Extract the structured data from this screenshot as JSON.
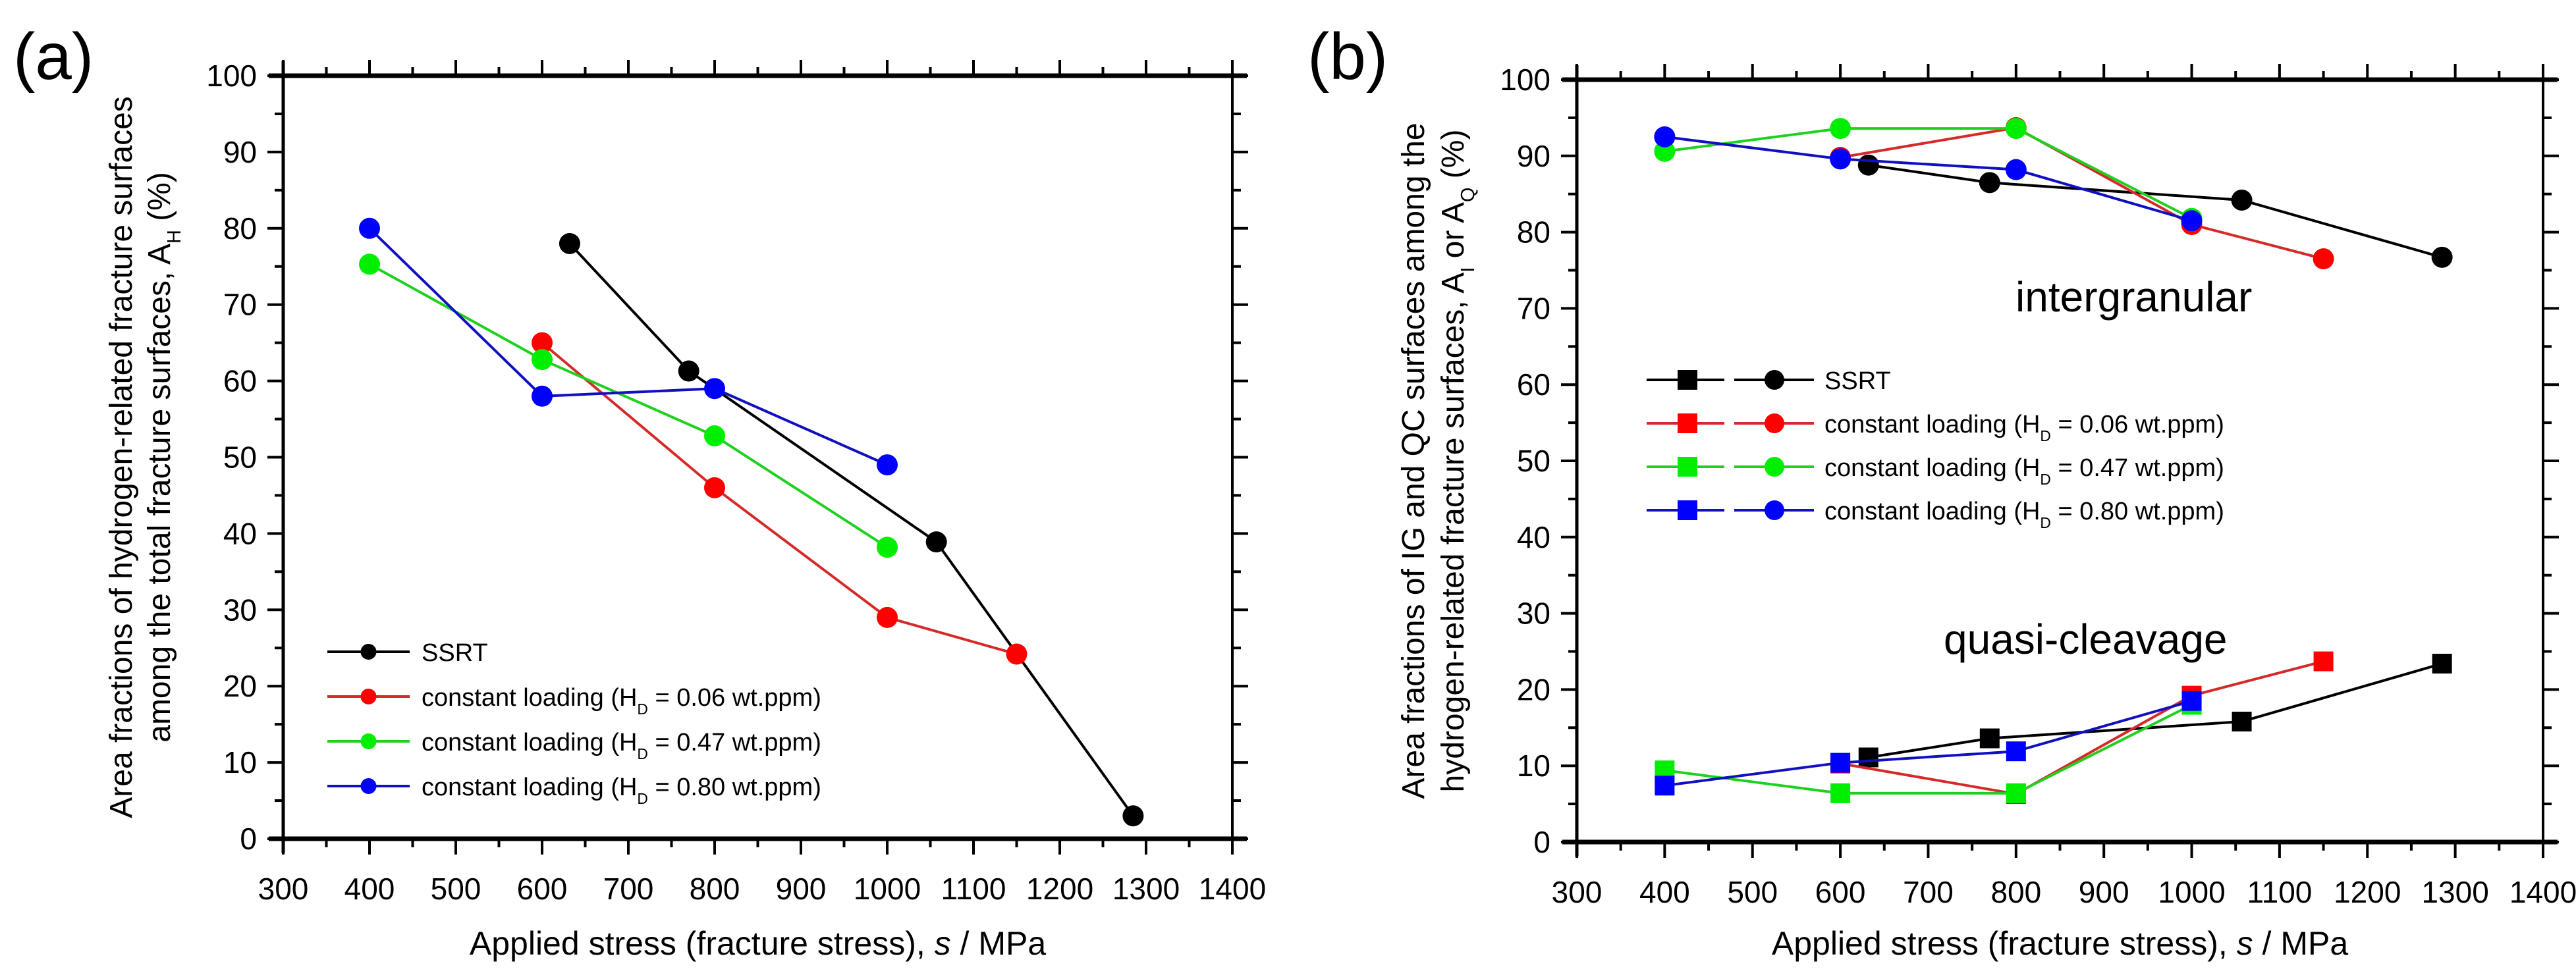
{
  "chart_data": [
    {
      "panel_label": "(a)",
      "type": "line",
      "xlabel_parts": [
        "Applied stress (fracture stress), ",
        "s",
        " / MPa"
      ],
      "ylabel_lines": [
        [
          "Area fractions of hydrogen-related fracture surfaces",
          "",
          ""
        ],
        [
          "among the total fracture surfaces, A",
          "H",
          " (%)"
        ]
      ],
      "xlim": [
        300,
        1400
      ],
      "ylim": [
        0,
        100
      ],
      "xticks": [
        300,
        400,
        500,
        600,
        700,
        800,
        900,
        1000,
        1100,
        1200,
        1300,
        1400
      ],
      "yticks": [
        0,
        10,
        20,
        30,
        40,
        50,
        60,
        70,
        80,
        90,
        100
      ],
      "legend_location": "lower-left",
      "annotations": [],
      "series": [
        {
          "name": "SSRT",
          "label_parts": [
            "SSRT",
            "",
            ""
          ],
          "color": "#000000",
          "line_color": "#000000",
          "marker": "circle",
          "x": [
            632,
            770,
            1057,
            1285
          ],
          "y": [
            78.0,
            61.3,
            38.9,
            3.0
          ]
        },
        {
          "name": "constant loading (HD = 0.06 wt.ppm)",
          "label_parts": [
            "constant loading (H",
            "D",
            " = 0.06 wt.ppm)"
          ],
          "color": "#ff0000",
          "line_color": "#d62a2a",
          "marker": "circle",
          "x": [
            600,
            800,
            1000,
            1150
          ],
          "y": [
            65.0,
            46.0,
            29.0,
            24.2
          ]
        },
        {
          "name": "constant loading (HD = 0.47 wt.ppm)",
          "label_parts": [
            "constant loading (H",
            "D",
            " = 0.47 wt.ppm)"
          ],
          "color": "#00ee00",
          "line_color": "#1fd01f",
          "marker": "circle",
          "x": [
            400,
            600,
            800,
            1000
          ],
          "y": [
            75.3,
            62.8,
            52.8,
            38.2
          ]
        },
        {
          "name": "constant loading (HD = 0.80 wt.ppm)",
          "label_parts": [
            "constant loading (H",
            "D",
            " = 0.80 wt.ppm)"
          ],
          "color": "#0000ff",
          "line_color": "#1010c0",
          "marker": "circle",
          "x": [
            400,
            600,
            800,
            1000
          ],
          "y": [
            80.0,
            58.0,
            59.0,
            49.0
          ]
        }
      ]
    },
    {
      "panel_label": "(b)",
      "type": "line",
      "xlabel_parts": [
        "Applied stress (fracture stress), ",
        "s",
        " / MPa"
      ],
      "ylabel_lines": [
        [
          "Area fractions of IG and QC surfaces among the",
          "",
          ""
        ],
        [
          "hydrogen-related fracture surfaces, A",
          "I",
          " or A",
          "Q",
          " (%)"
        ]
      ],
      "xlim": [
        300,
        1400
      ],
      "ylim": [
        0,
        100
      ],
      "xticks": [
        300,
        400,
        500,
        600,
        700,
        800,
        900,
        1000,
        1100,
        1200,
        1300,
        1400
      ],
      "yticks": [
        0,
        10,
        20,
        30,
        40,
        50,
        60,
        70,
        80,
        90,
        100
      ],
      "legend_location": "center-left",
      "annotations": [
        "intergranular",
        "quasi-cleavage"
      ],
      "series": [
        {
          "name": "SSRT",
          "label_parts": [
            "SSRT",
            "",
            ""
          ],
          "color": "#000000",
          "line_color": "#000000",
          "x": [
            632,
            770,
            1057,
            1285
          ],
          "y_intergranular": [
            88.8,
            86.5,
            84.2,
            76.7
          ],
          "y_quasi_cleavage": [
            11.1,
            13.6,
            15.8,
            23.4
          ]
        },
        {
          "name": "constant loading (HD = 0.06 wt.ppm)",
          "label_parts": [
            "constant loading (H",
            "D",
            " = 0.06 wt.ppm)"
          ],
          "color": "#ff0000",
          "line_color": "#d62a2a",
          "x": [
            600,
            800,
            1000,
            1150
          ],
          "y_intergranular": [
            89.8,
            93.7,
            81.0,
            76.5
          ],
          "y_quasi_cleavage": [
            10.3,
            6.3,
            19.2,
            23.7
          ]
        },
        {
          "name": "constant loading (HD = 0.47 wt.ppm)",
          "label_parts": [
            "constant loading (H",
            "D",
            " = 0.47 wt.ppm)"
          ],
          "color": "#00ee00",
          "line_color": "#1fd01f",
          "x": [
            400,
            600,
            800,
            1000
          ],
          "y_intergranular": [
            90.6,
            93.6,
            93.6,
            81.8
          ],
          "y_quasi_cleavage": [
            9.4,
            6.4,
            6.4,
            18.0
          ]
        },
        {
          "name": "constant loading (HD = 0.80 wt.ppm)",
          "label_parts": [
            "constant loading (H",
            "D",
            " = 0.80 wt.ppm)"
          ],
          "color": "#0000ff",
          "line_color": "#1010c0",
          "x": [
            400,
            600,
            800,
            1000
          ],
          "y_intergranular": [
            92.5,
            89.6,
            88.2,
            81.5
          ],
          "y_quasi_cleavage": [
            7.4,
            10.4,
            11.9,
            18.5
          ]
        }
      ]
    }
  ]
}
